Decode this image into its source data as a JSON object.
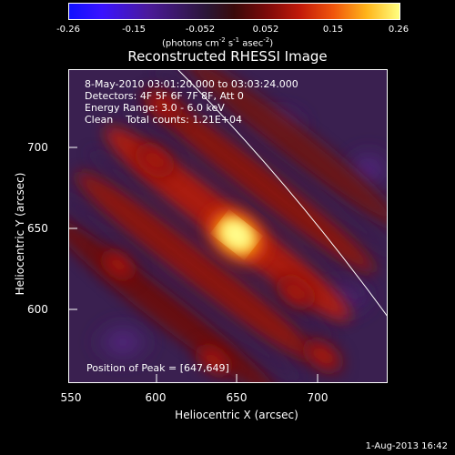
{
  "colorbar": {
    "ticks": [
      "-0.26",
      "-0.15",
      "-0.052",
      "0.052",
      "0.15",
      "0.26"
    ],
    "unit_prefix": "(photons cm",
    "unit_exp1": "-2",
    "unit_mid": " s",
    "unit_exp2": "-1",
    "unit_mid2": " asec",
    "unit_exp3": "-2",
    "unit_suffix": ")"
  },
  "title": "Reconstructed RHESSI Image",
  "info": {
    "time": "8-May-2010 03:01:20.000 to 03:03:24.000",
    "detectors": "Detectors: 4F 5F 6F 7F 8F, Att 0",
    "energy": "Energy Range: 3.0 - 6.0 keV",
    "clean": "Clean    Total counts: 1.21E+04"
  },
  "peak": "Position of Peak = [647,649]",
  "axes": {
    "xlabel": "Heliocentric X (arcsec)",
    "ylabel": "Heliocentric Y (arcsec)",
    "xticks": [
      "550",
      "600",
      "650",
      "700"
    ],
    "yticks": [
      "700",
      "650",
      "600"
    ]
  },
  "colors": {
    "background": "#2a1a3a",
    "peak": "#ffff80",
    "limb_line": "#ffffff"
  },
  "date_stamp": "1-Aug-2013 16:42"
}
